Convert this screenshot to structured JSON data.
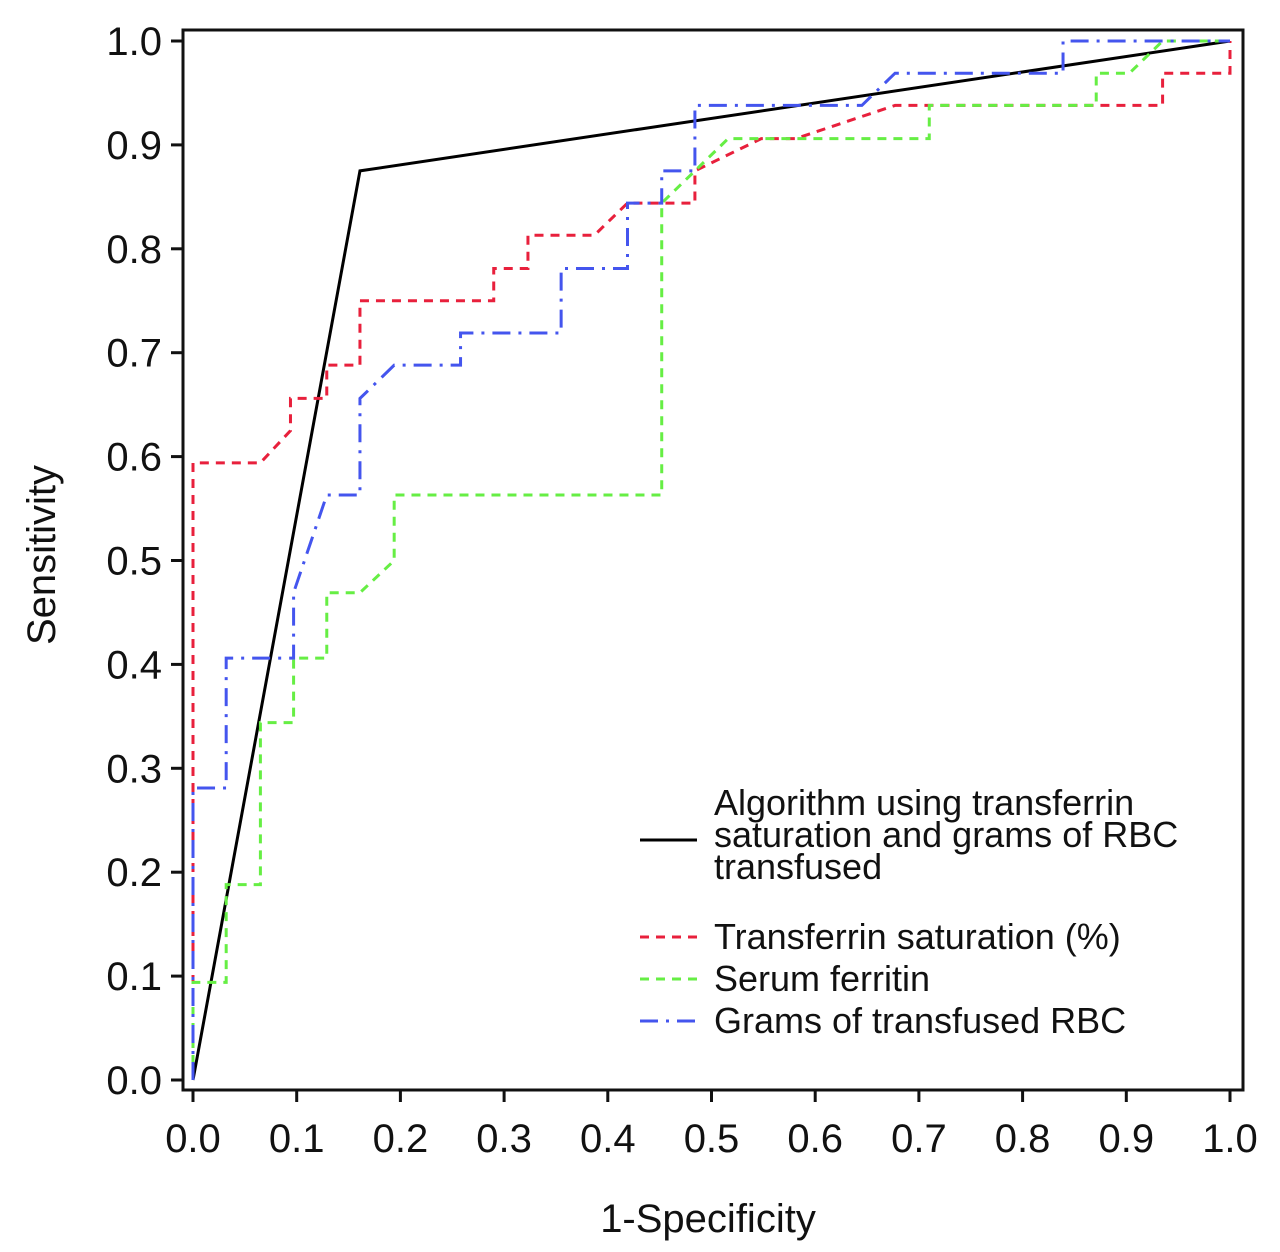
{
  "chart_data": {
    "type": "line",
    "title": "",
    "xlabel": "1-Specificity",
    "ylabel": "Sensitivity",
    "xlim": [
      0,
      1
    ],
    "ylim": [
      0,
      1
    ],
    "xticks": [
      "0.0",
      "0.1",
      "0.2",
      "0.3",
      "0.4",
      "0.5",
      "0.6",
      "0.7",
      "0.8",
      "0.9",
      "1.0"
    ],
    "yticks": [
      "0.0",
      "0.1",
      "0.2",
      "0.3",
      "0.4",
      "0.5",
      "0.6",
      "0.7",
      "0.8",
      "0.9",
      "1.0"
    ],
    "grid": false,
    "legend_position": "bottom-right",
    "series": [
      {
        "name": "Algorithm using transferrin saturation and grams of RBC transfused",
        "legend_lines": [
          "Algorithm using transferrin",
          "saturation and grams of RBC",
          "transfused"
        ],
        "color": "#000000",
        "dash": "solid",
        "points": [
          [
            0,
            0
          ],
          [
            0.161,
            0.875
          ],
          [
            1,
            1
          ]
        ]
      },
      {
        "name": "Transferrin saturation (%)",
        "legend_lines": [
          "Transferrin saturation (%)"
        ],
        "color": "#e8203c",
        "dash": "dashed",
        "points": [
          [
            0,
            0
          ],
          [
            0,
            0.594
          ],
          [
            0.065,
            0.594
          ],
          [
            0.094,
            0.625
          ],
          [
            0.094,
            0.656
          ],
          [
            0.129,
            0.656
          ],
          [
            0.129,
            0.688
          ],
          [
            0.161,
            0.688
          ],
          [
            0.161,
            0.75
          ],
          [
            0.29,
            0.75
          ],
          [
            0.29,
            0.781
          ],
          [
            0.323,
            0.781
          ],
          [
            0.323,
            0.813
          ],
          [
            0.387,
            0.813
          ],
          [
            0.419,
            0.844
          ],
          [
            0.484,
            0.844
          ],
          [
            0.484,
            0.875
          ],
          [
            0.548,
            0.906
          ],
          [
            0.581,
            0.906
          ],
          [
            0.677,
            0.938
          ],
          [
            0.935,
            0.938
          ],
          [
            0.935,
            0.969
          ],
          [
            1,
            0.969
          ],
          [
            1,
            1
          ]
        ]
      },
      {
        "name": "Serum ferritin",
        "legend_lines": [
          "Serum ferritin"
        ],
        "color": "#66ee44",
        "dash": "dashed",
        "points": [
          [
            0,
            0
          ],
          [
            0,
            0.094
          ],
          [
            0.032,
            0.094
          ],
          [
            0.032,
            0.188
          ],
          [
            0.065,
            0.188
          ],
          [
            0.065,
            0.344
          ],
          [
            0.097,
            0.344
          ],
          [
            0.097,
            0.406
          ],
          [
            0.129,
            0.406
          ],
          [
            0.129,
            0.469
          ],
          [
            0.161,
            0.469
          ],
          [
            0.194,
            0.5
          ],
          [
            0.194,
            0.563
          ],
          [
            0.452,
            0.563
          ],
          [
            0.452,
            0.844
          ],
          [
            0.484,
            0.875
          ],
          [
            0.516,
            0.906
          ],
          [
            0.71,
            0.906
          ],
          [
            0.71,
            0.938
          ],
          [
            0.871,
            0.938
          ],
          [
            0.871,
            0.969
          ],
          [
            0.903,
            0.969
          ],
          [
            0.935,
            1
          ],
          [
            1,
            1
          ]
        ]
      },
      {
        "name": "Grams of transfused RBC",
        "legend_lines": [
          "Grams of transfused RBC"
        ],
        "color": "#4455ee",
        "dash": "dashdot",
        "points": [
          [
            0,
            0
          ],
          [
            0,
            0.281
          ],
          [
            0.032,
            0.281
          ],
          [
            0.032,
            0.406
          ],
          [
            0.097,
            0.406
          ],
          [
            0.097,
            0.469
          ],
          [
            0.129,
            0.563
          ],
          [
            0.161,
            0.563
          ],
          [
            0.161,
            0.656
          ],
          [
            0.194,
            0.688
          ],
          [
            0.258,
            0.688
          ],
          [
            0.258,
            0.719
          ],
          [
            0.355,
            0.719
          ],
          [
            0.355,
            0.781
          ],
          [
            0.419,
            0.781
          ],
          [
            0.419,
            0.844
          ],
          [
            0.452,
            0.844
          ],
          [
            0.452,
            0.875
          ],
          [
            0.484,
            0.875
          ],
          [
            0.484,
            0.938
          ],
          [
            0.645,
            0.938
          ],
          [
            0.677,
            0.969
          ],
          [
            0.839,
            0.969
          ],
          [
            0.839,
            1
          ],
          [
            1,
            1
          ]
        ]
      }
    ]
  }
}
